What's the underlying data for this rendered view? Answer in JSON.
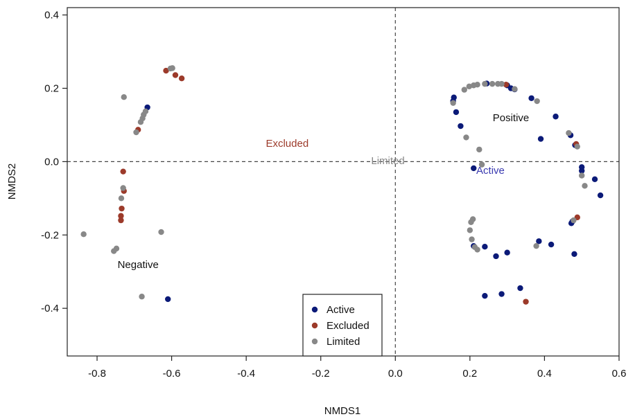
{
  "chart_data": {
    "type": "scatter",
    "xlabel": "NMDS1",
    "ylabel": "NMDS2",
    "xlim": [
      -0.88,
      0.6
    ],
    "ylim": [
      -0.53,
      0.42
    ],
    "xticks": [
      -0.8,
      -0.6,
      -0.4,
      -0.2,
      0.0,
      0.2,
      0.4,
      0.6
    ],
    "xtick_labels": [
      "-0.8",
      "-0.6",
      "-0.4",
      "-0.2",
      "0.0",
      "0.2",
      "0.4",
      "0.6"
    ],
    "yticks": [
      -0.4,
      -0.2,
      0.0,
      0.2,
      0.4
    ],
    "ytick_labels": [
      "-0.4",
      "-0.2",
      "0.0",
      "0.2",
      "0.4"
    ],
    "grid": false,
    "reference_lines": {
      "x": 0,
      "y": 0,
      "style": "dashed"
    },
    "legend": {
      "position": "bottom-center"
    },
    "annotations": [
      {
        "text": "Excluded",
        "x": -0.29,
        "y": 0.04,
        "color": "#9c3a2a"
      },
      {
        "text": "Limited",
        "x": -0.02,
        "y": -0.007,
        "color": "#888888"
      },
      {
        "text": "Active",
        "x": 0.255,
        "y": -0.033,
        "color": "#3a3ab0"
      },
      {
        "text": "Positive",
        "x": 0.31,
        "y": 0.11,
        "color": "#111111"
      },
      {
        "text": "Negative",
        "x": -0.69,
        "y": -0.29,
        "color": "#111111"
      }
    ],
    "series": [
      {
        "name": "Active",
        "color": "#0b1a78",
        "points": [
          [
            -0.665,
            0.148
          ],
          [
            -0.61,
            -0.375
          ],
          [
            0.155,
            0.165
          ],
          [
            0.157,
            0.175
          ],
          [
            0.163,
            0.135
          ],
          [
            0.175,
            0.097
          ],
          [
            0.245,
            0.213
          ],
          [
            0.3,
            0.208
          ],
          [
            0.31,
            0.2
          ],
          [
            0.32,
            0.197
          ],
          [
            0.365,
            0.173
          ],
          [
            0.43,
            0.123
          ],
          [
            0.39,
            0.062
          ],
          [
            0.47,
            0.072
          ],
          [
            0.482,
            0.045
          ],
          [
            0.5,
            -0.015
          ],
          [
            0.5,
            -0.025
          ],
          [
            0.535,
            -0.048
          ],
          [
            0.55,
            -0.092
          ],
          [
            0.475,
            -0.163
          ],
          [
            0.472,
            -0.168
          ],
          [
            0.48,
            -0.252
          ],
          [
            0.385,
            -0.217
          ],
          [
            0.418,
            -0.226
          ],
          [
            0.21,
            -0.23
          ],
          [
            0.24,
            -0.232
          ],
          [
            0.27,
            -0.258
          ],
          [
            0.3,
            -0.248
          ],
          [
            0.24,
            -0.366
          ],
          [
            0.285,
            -0.361
          ],
          [
            0.335,
            -0.345
          ],
          [
            0.21,
            -0.018
          ]
        ]
      },
      {
        "name": "Excluded",
        "color": "#9c3a2a",
        "points": [
          [
            -0.615,
            0.248
          ],
          [
            -0.59,
            0.236
          ],
          [
            -0.573,
            0.227
          ],
          [
            -0.69,
            0.087
          ],
          [
            -0.73,
            -0.027
          ],
          [
            -0.728,
            -0.08
          ],
          [
            -0.734,
            -0.128
          ],
          [
            -0.736,
            -0.148
          ],
          [
            -0.736,
            -0.16
          ],
          [
            0.297,
            0.21
          ],
          [
            0.485,
            0.048
          ],
          [
            0.488,
            -0.152
          ],
          [
            0.35,
            -0.382
          ]
        ]
      },
      {
        "name": "Limited",
        "color": "#888888",
        "points": [
          [
            -0.603,
            0.254
          ],
          [
            -0.598,
            0.255
          ],
          [
            -0.728,
            0.176
          ],
          [
            -0.67,
            0.137
          ],
          [
            -0.675,
            0.128
          ],
          [
            -0.678,
            0.118
          ],
          [
            -0.683,
            0.108
          ],
          [
            -0.695,
            0.08
          ],
          [
            -0.73,
            -0.072
          ],
          [
            -0.735,
            -0.1
          ],
          [
            -0.748,
            -0.237
          ],
          [
            -0.755,
            -0.244
          ],
          [
            -0.836,
            -0.198
          ],
          [
            -0.628,
            -0.192
          ],
          [
            -0.68,
            -0.368
          ],
          [
            0.155,
            0.16
          ],
          [
            0.185,
            0.196
          ],
          [
            0.198,
            0.205
          ],
          [
            0.21,
            0.208
          ],
          [
            0.22,
            0.21
          ],
          [
            0.24,
            0.212
          ],
          [
            0.26,
            0.212
          ],
          [
            0.275,
            0.212
          ],
          [
            0.285,
            0.212
          ],
          [
            0.32,
            0.198
          ],
          [
            0.38,
            0.165
          ],
          [
            0.465,
            0.078
          ],
          [
            0.488,
            0.041
          ],
          [
            0.5,
            -0.038
          ],
          [
            0.508,
            -0.066
          ],
          [
            0.478,
            -0.16
          ],
          [
            0.378,
            -0.23
          ],
          [
            0.19,
            0.066
          ],
          [
            0.225,
            0.033
          ],
          [
            0.232,
            -0.008
          ],
          [
            0.208,
            -0.157
          ],
          [
            0.203,
            -0.165
          ],
          [
            0.2,
            -0.187
          ],
          [
            0.205,
            -0.212
          ],
          [
            0.213,
            -0.233
          ],
          [
            0.22,
            -0.24
          ]
        ]
      }
    ]
  }
}
